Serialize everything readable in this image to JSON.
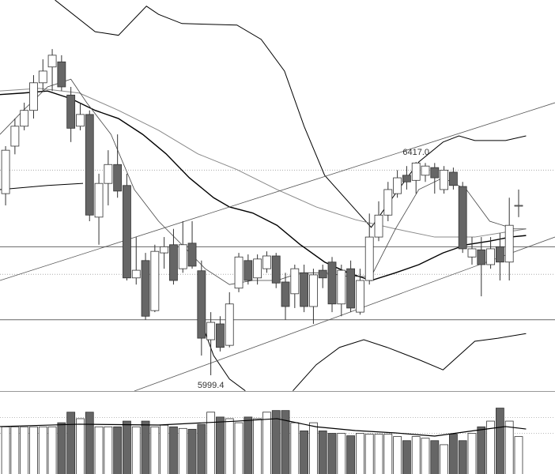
{
  "chart_data": {
    "type": "candlestick",
    "xlim": [
      -0.6,
      58.9
    ],
    "ylim": [
      5968.5,
      6734.1
    ],
    "up_color": "#ffffff",
    "down_color": "#666666",
    "edge_color": "#333333",
    "candles": {
      "open": [
        6355,
        6448,
        6487,
        6518,
        6572,
        6603,
        6613,
        6548,
        6487,
        6510,
        6309,
        6375,
        6412,
        6371,
        6190,
        6224,
        6126,
        6239,
        6255,
        6208,
        6258,
        6204,
        6069,
        6100,
        6058,
        6170,
        6224,
        6190,
        6208,
        6233,
        6182,
        6159,
        6200,
        6134,
        6205,
        6221,
        6139,
        6208,
        6123,
        6185,
        6270,
        6313,
        6355,
        6391,
        6381,
        6391,
        6406,
        6363,
        6397,
        6369,
        6231,
        6245,
        6216,
        6251,
        6221,
        6332
      ],
      "high": [
        6448,
        6502,
        6533,
        6587,
        6618,
        6638,
        6626,
        6564,
        6533,
        6518,
        6394,
        6440,
        6471,
        6394,
        6270,
        6239,
        6255,
        6270,
        6286,
        6301,
        6301,
        6224,
        6123,
        6115,
        6162,
        6239,
        6236,
        6236,
        6242,
        6239,
        6200,
        6216,
        6216,
        6208,
        6216,
        6231,
        6216,
        6224,
        6208,
        6316,
        6340,
        6378,
        6401,
        6409,
        6417.0,
        6415,
        6415,
        6409,
        6406,
        6378,
        6270,
        6270,
        6270,
        6278,
        6347,
        6363
      ],
      "low": [
        6332,
        6432,
        6479,
        6502,
        6556,
        6556,
        6556,
        6456,
        6479,
        6301,
        6255,
        6332,
        6347,
        6185,
        6177,
        6108,
        6123,
        6208,
        6177,
        6200,
        6208,
        6038,
        5999.4,
        6046,
        6054,
        6162,
        6177,
        6177,
        6200,
        6170,
        6108,
        6131,
        6123,
        6100,
        6170,
        6123,
        6115,
        6123,
        6118,
        6177,
        6262,
        6301,
        6347,
        6363,
        6355,
        6378,
        6355,
        6355,
        6363,
        6239,
        6216,
        6154,
        6208,
        6185,
        6185,
        6309
      ],
      "close": [
        6440,
        6487,
        6518,
        6572,
        6595,
        6626,
        6564,
        6483,
        6510,
        6313,
        6375,
        6412,
        6360,
        6190,
        6205,
        6115,
        6242,
        6251,
        6185,
        6255,
        6213,
        6072,
        6103,
        6054,
        6139,
        6231,
        6185,
        6227,
        6233,
        6180,
        6134,
        6208,
        6134,
        6196,
        6190,
        6139,
        6205,
        6131,
        6185,
        6270,
        6313,
        6363,
        6386,
        6378,
        6415,
        6409,
        6386,
        6401,
        6371,
        6247,
        6247,
        6216,
        6247,
        6221,
        6293,
        6332
      ]
    },
    "annotations": [
      "6417.0",
      "5999.4"
    ],
    "hlines": [
      {
        "value": 6401,
        "style": "dotted"
      },
      {
        "value": 6197,
        "style": "dotted"
      },
      {
        "value": 6251,
        "style": "solid"
      },
      {
        "value": 6108,
        "style": "solid"
      }
    ],
    "lines": [
      {
        "color": "#000000",
        "width": 1,
        "x": [
          5.3,
          9.6,
          12.1,
          15.1,
          16.4,
          18.9,
          24.8,
          27.4,
          29.9,
          32,
          34.2,
          36.7,
          39.2,
          41.8,
          44.3,
          46.9,
          48.6,
          50.3,
          53.6,
          55.8
        ],
        "values": [
          6734,
          6672,
          6665,
          6722,
          6706,
          6688,
          6685,
          6657,
          6595,
          6487,
          6391,
          6340,
          6289,
          6355,
          6417,
          6456,
          6468,
          6459,
          6459,
          6468
        ]
      },
      {
        "color": "#000000",
        "width": 1,
        "x": [
          -0.6,
          4.5,
          8.3,
          14.7,
          20.6,
          22.3,
          24,
          25.7,
          28.2,
          30.8,
          33.3,
          35.8,
          38.4,
          40.9,
          44.3,
          46.9,
          50.3,
          52.8,
          55.8
        ],
        "values": [
          6363,
          6371,
          6375,
          null,
          6123,
          6038,
          5992,
          5969,
          null,
          5969,
          6020,
          6054,
          6069,
          6054,
          6030,
          6010,
          6066,
          6072,
          6081
        ]
      },
      {
        "color": "#000000",
        "width": 1.4,
        "x": [
          -0.6,
          1.9,
          4.5,
          7,
          9.6,
          12.1,
          14.7,
          17.2,
          19.7,
          22.3,
          24,
          26.5,
          29.1,
          31.6,
          34.2,
          36.7,
          39.2,
          41.8,
          44.3,
          46.9,
          49.4,
          51.9,
          54.1,
          55.8
        ],
        "values": [
          6549,
          6552,
          6556,
          6541,
          6518,
          6502,
          6471,
          6433,
          6386,
          6347,
          6329,
          6317,
          6293,
          6255,
          6221,
          6200,
          6185,
          6200,
          6216,
          6239,
          6255,
          6262,
          6270,
          6273
        ]
      },
      {
        "color": "#888888",
        "width": 1,
        "x": [
          -0.6,
          3.6,
          7.9,
          12.1,
          16.4,
          20.6,
          24.8,
          29.1,
          33.3,
          37.5,
          41.8,
          46,
          50.3,
          55.8
        ],
        "values": [
          6556,
          6561,
          6552,
          6518,
          6479,
          6433,
          6402,
          6363,
          6329,
          6304,
          6286,
          6270,
          6270,
          6286
        ]
      },
      {
        "color": "#444444",
        "width": 0.8,
        "x": [
          -0.6,
          1.9,
          4.5,
          7,
          8.7,
          11.3,
          13.8,
          16.4,
          18.9,
          21.4,
          24,
          26.5,
          29.1,
          31.6,
          34.2,
          36.7,
          39.2,
          41.8,
          44.3,
          46.9,
          49.4,
          51.9,
          54.5,
          55.8
        ],
        "values": [
          6471,
          6518,
          6564,
          6579,
          6533,
          6471,
          6363,
          6301,
          6255,
          6208,
          6177,
          6185,
          6185,
          6200,
          6200,
          6193,
          6193,
          6286,
          6363,
          6386,
          6363,
          6301,
          6286,
          6286
        ]
      },
      {
        "color": "#555555",
        "width": 0.8,
        "x": [
          -0.6,
          58.9
        ],
        "values": [
          6185,
          6533
        ]
      },
      {
        "color": "#555555",
        "width": 0.8,
        "x": [
          13.8,
          58.9
        ],
        "values": [
          5968.5,
          6270
        ]
      }
    ],
    "volume": {
      "ylim": [
        0,
        100
      ],
      "values": [
        58,
        58,
        58,
        58,
        58,
        58,
        63,
        76,
        68,
        76,
        58,
        58,
        58,
        65,
        58,
        65,
        58,
        60,
        58,
        56,
        55,
        61,
        76,
        70,
        68,
        63,
        70,
        68,
        76,
        78,
        78,
        63,
        53,
        63,
        53,
        50,
        50,
        47,
        50,
        49,
        49,
        49,
        46,
        41,
        46,
        44,
        41,
        36,
        49,
        41,
        50,
        58,
        65,
        81,
        65,
        46
      ],
      "ma": {
        "color": "#000000",
        "x": [
          -0.6,
          7.9,
          16.4,
          24.8,
          29.1,
          33.3,
          37.5,
          41.8,
          46,
          50.3,
          53.6,
          55.8
        ],
        "values": [
          58.3,
          61.2,
          60.2,
          65,
          68,
          58,
          53.4,
          50.5,
          46.6,
          53.4,
          58.3,
          55.3
        ]
      }
    }
  }
}
